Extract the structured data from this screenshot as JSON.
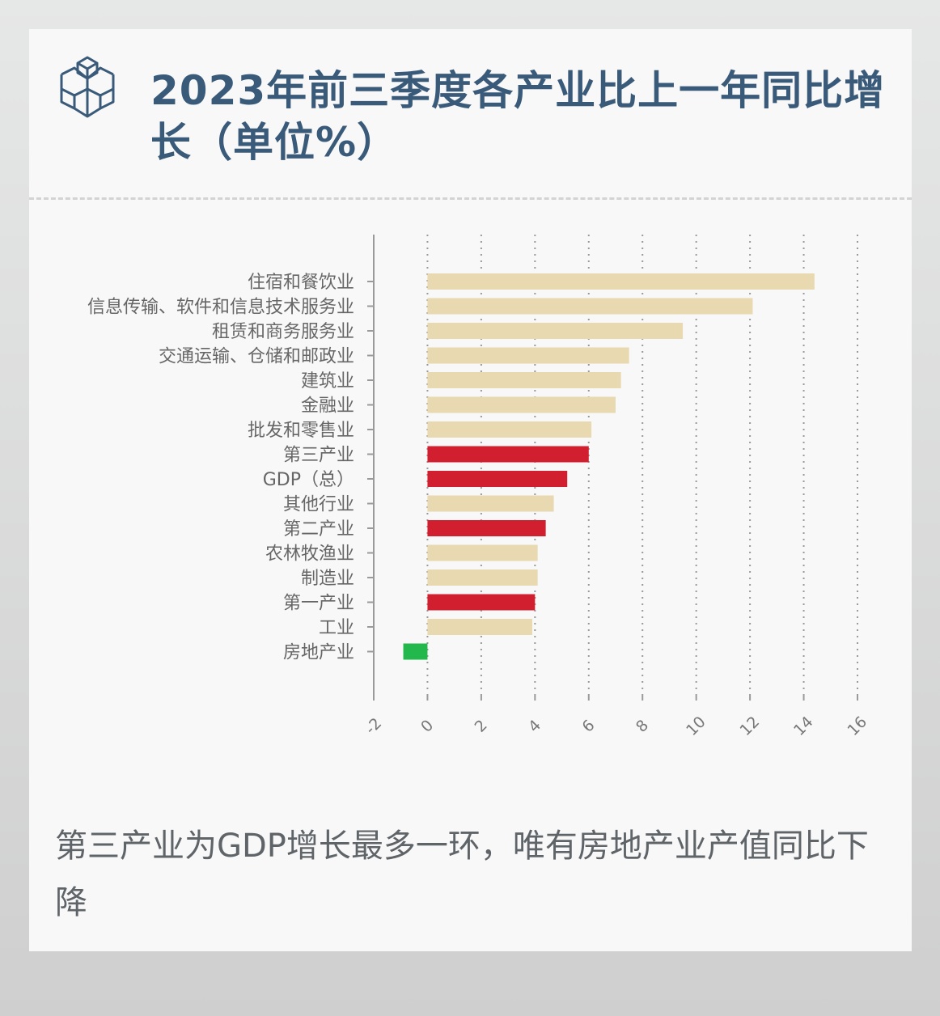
{
  "title": "2023年前三季度各产业比上一年同比增长（单位%）",
  "caption": "第三产业为GDP增长最多一环，唯有房地产业产值同比下降",
  "colors": {
    "title": "#3a5a7a",
    "industry": "#e9d9b0",
    "sector": "#d21f2f",
    "negative": "#22b84c",
    "axis": "#9a9a9a",
    "label": "#666666"
  },
  "chart_data": {
    "type": "bar",
    "orientation": "horizontal",
    "title": "",
    "xlabel": "",
    "ylabel": "",
    "xlim": [
      -2,
      16
    ],
    "xticks": [
      -2,
      0,
      2,
      4,
      6,
      8,
      10,
      12,
      14,
      16
    ],
    "grid": "vertical dotted",
    "categories": [
      "住宿和餐饮业",
      "信息传输、软件和信息技术服务业",
      "租赁和商务服务业",
      "交通运输、仓储和邮政业",
      "建筑业",
      "金融业",
      "批发和零售业",
      "第三产业",
      "GDP（总）",
      "其他行业",
      "第二产业",
      "农林牧渔业",
      "制造业",
      "第一产业",
      "工业",
      "房地产业"
    ],
    "values": [
      14.4,
      12.1,
      9.5,
      7.5,
      7.2,
      7.0,
      6.1,
      6.0,
      5.2,
      4.7,
      4.4,
      4.1,
      4.1,
      4.0,
      3.9,
      -0.9
    ],
    "bar_types": [
      "industry",
      "industry",
      "industry",
      "industry",
      "industry",
      "industry",
      "industry",
      "sector",
      "sector",
      "industry",
      "sector",
      "industry",
      "industry",
      "sector",
      "industry",
      "negative"
    ]
  }
}
